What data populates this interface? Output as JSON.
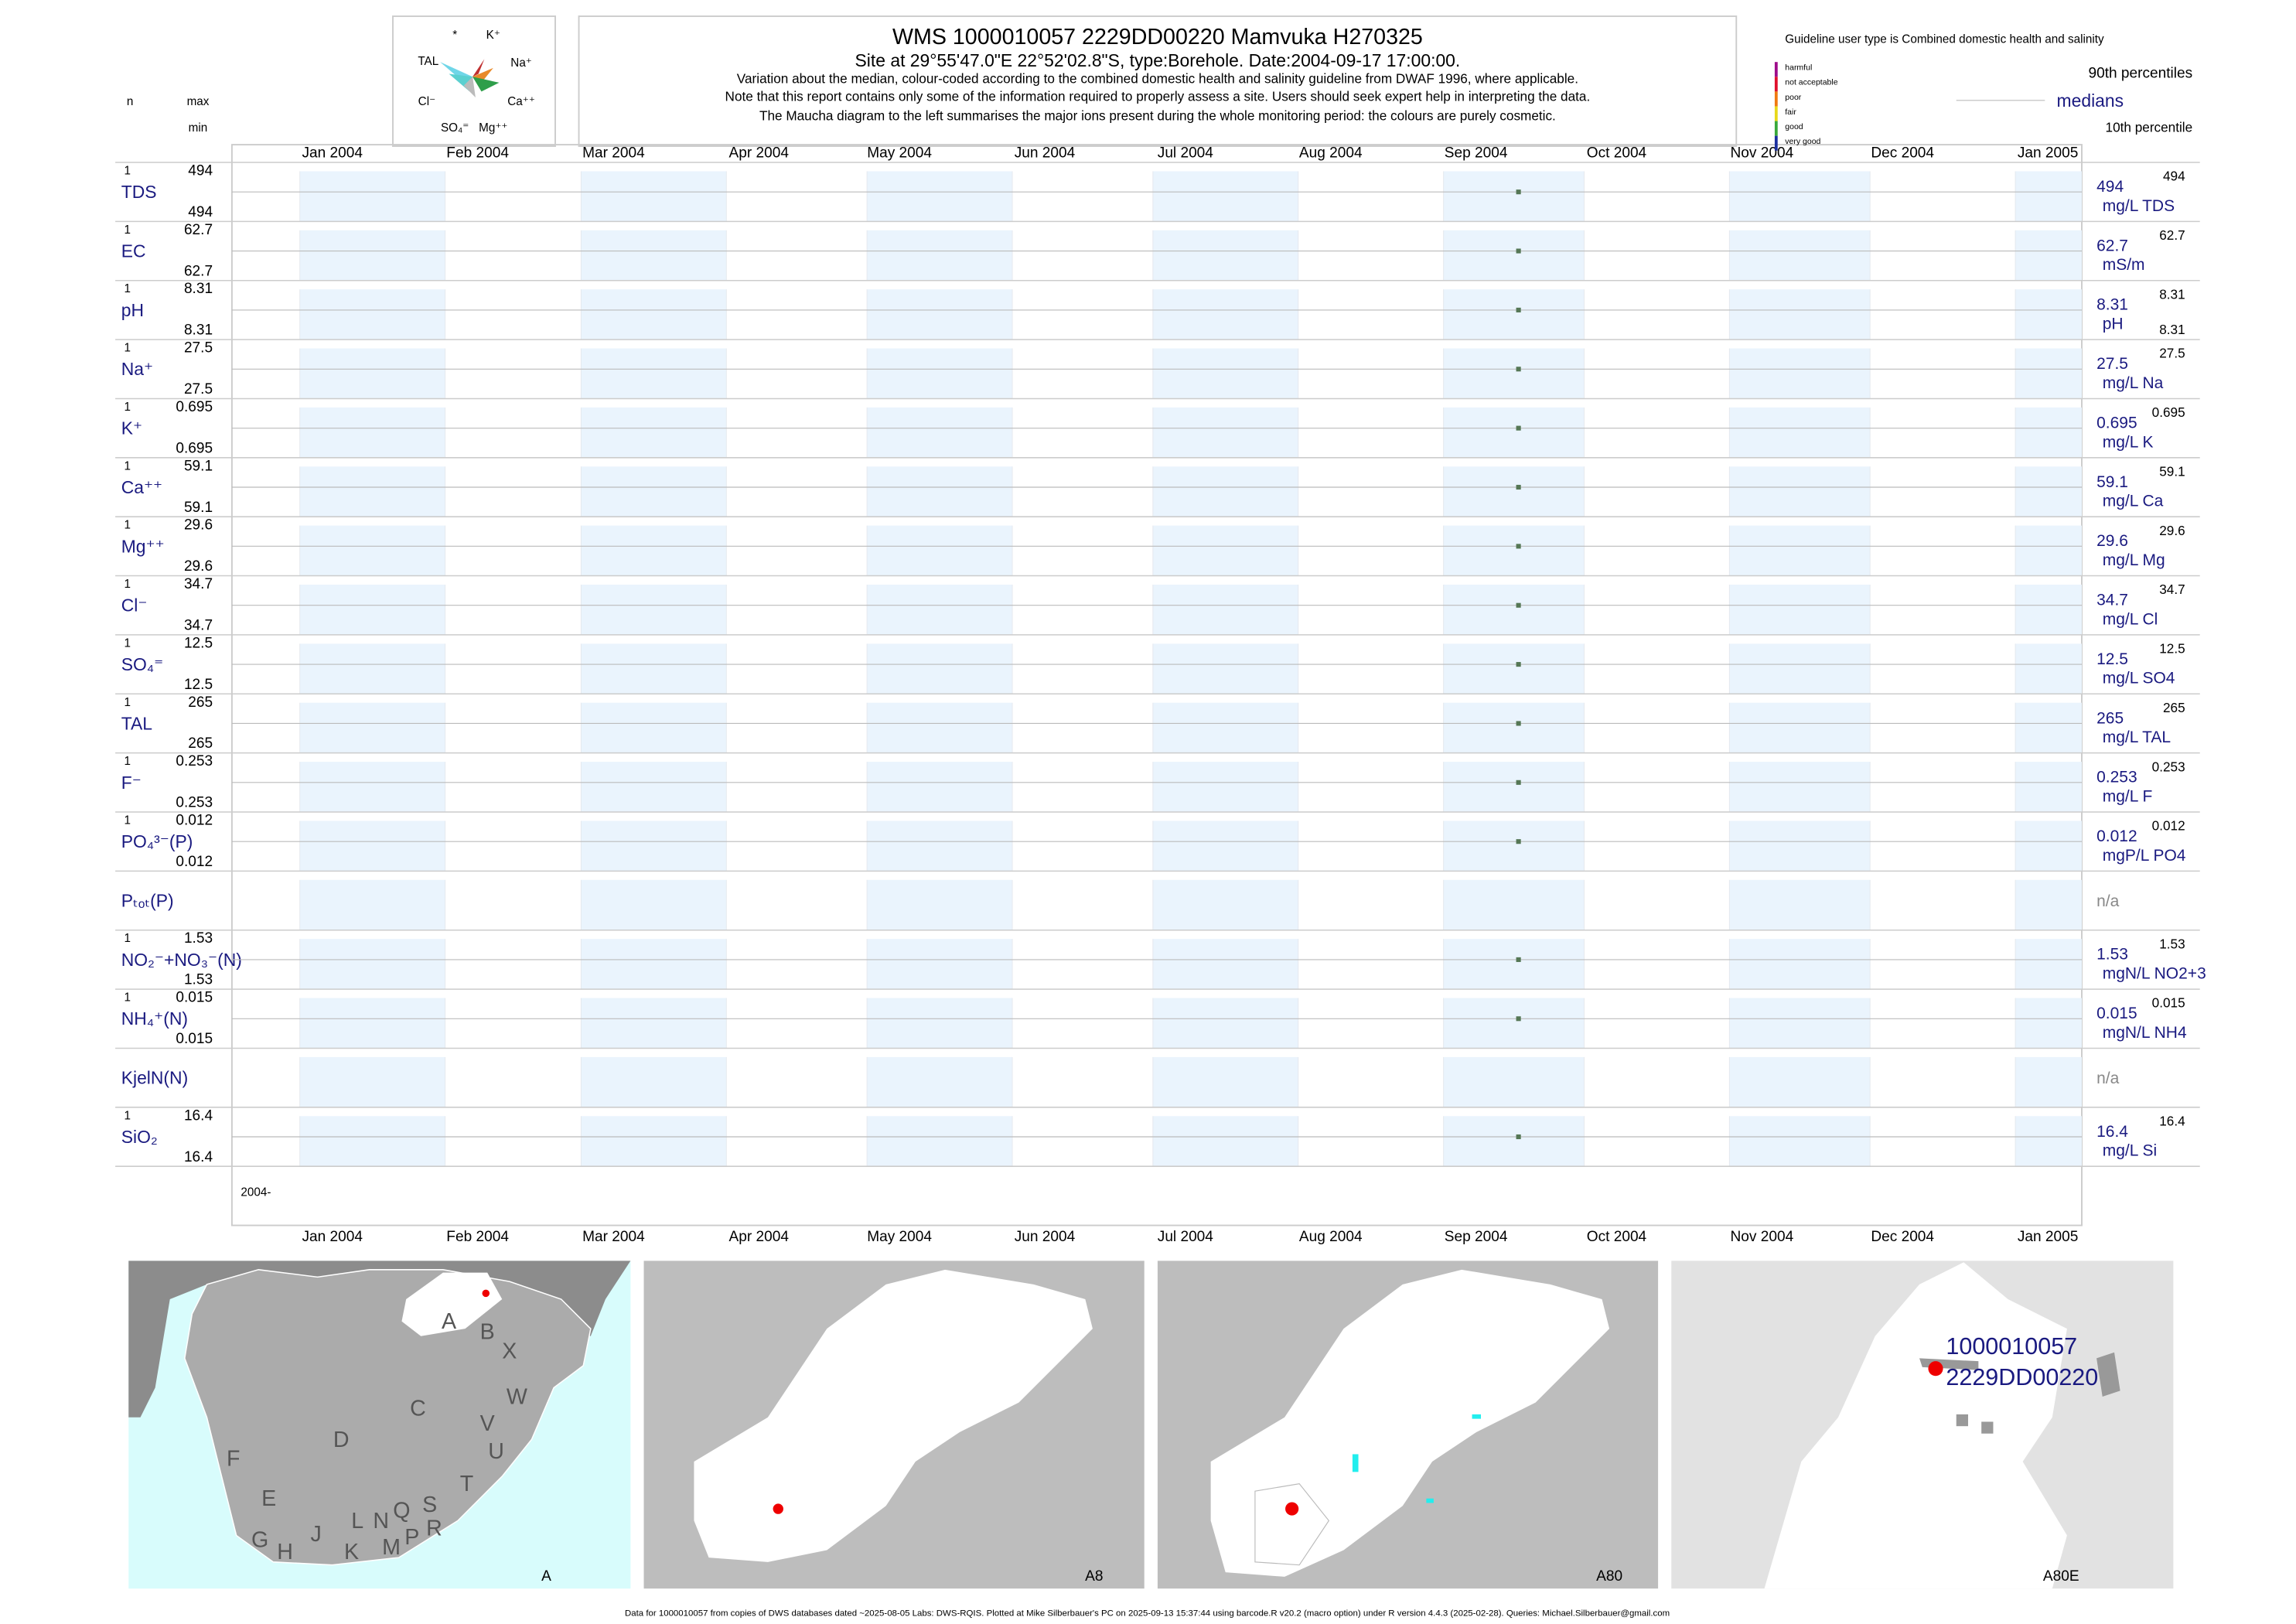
{
  "header": {
    "title": "WMS 1000010057 2229DD00220 Mamvuka H270325",
    "subtitle": "Site at 29°55'47.0\"E 22°52'02.8\"S, type:Borehole. Date:2004-09-17 17:00:00.",
    "notes": [
      "Variation about the median,  colour-coded according to the combined domestic health and salinity guideline from DWAF 1996, where applicable.",
      "Note that this report contains only some of the information required to properly assess a site. Users should seek expert help in interpreting the data.",
      "The Maucha diagram to the left summarises the major ions present during the whole monitoring period: the colours are purely cosmetic."
    ]
  },
  "column_heads": {
    "n": "n",
    "max": "max",
    "min": "min"
  },
  "maucha": {
    "labels": [
      "*",
      "K⁺",
      "TAL",
      "Na⁺",
      "Cl⁻",
      "Ca⁺⁺",
      "SO₄⁼",
      "Mg⁺⁺"
    ]
  },
  "legend": {
    "guideline": "Guideline user type is Combined domestic health and salinity",
    "classes": [
      {
        "name": "harmful",
        "color": "#9e0c8a"
      },
      {
        "name": "not acceptable",
        "color": "#e0102c"
      },
      {
        "name": "poor",
        "color": "#f07a10"
      },
      {
        "name": "fair",
        "color": "#e8d81a"
      },
      {
        "name": "good",
        "color": "#39a83a"
      },
      {
        "name": "very good",
        "color": "#1b2f9e"
      }
    ],
    "p90": "90th percentiles",
    "median": "medians",
    "p10": "10th percentile"
  },
  "plot": {
    "ticks": [
      {
        "value": "2004-01",
        "label": "Jan 2004"
      },
      {
        "value": "2004-02",
        "label": "Feb 2004"
      },
      {
        "value": "2004-03",
        "label": "Mar 2004"
      },
      {
        "value": "2004-04",
        "label": "Apr 2004"
      },
      {
        "value": "2004-05",
        "label": "May 2004"
      },
      {
        "value": "2004-06",
        "label": "Jun 2004"
      },
      {
        "value": "2004-07",
        "label": "Jul 2004"
      },
      {
        "value": "2004-08",
        "label": "Aug 2004"
      },
      {
        "value": "2004-09",
        "label": "Sep 2004"
      },
      {
        "value": "2004-10",
        "label": "Oct 2004"
      },
      {
        "value": "2004-11",
        "label": "Nov 2004"
      },
      {
        "value": "2004-12",
        "label": "Dec 2004"
      },
      {
        "value": "2005-01",
        "label": "Jan 2005"
      }
    ],
    "sample_date": "2004-09-17",
    "year_label": "2004-"
  },
  "rows": [
    {
      "label": "TDS",
      "n": 1,
      "max": 494,
      "min": 494,
      "median": 494,
      "p90": 494,
      "unit": "mg/L TDS"
    },
    {
      "label": "EC",
      "n": 1,
      "max": 62.7,
      "min": 62.7,
      "median": 62.7,
      "p90": 62.7,
      "unit": "mS/m"
    },
    {
      "label": "pH",
      "n": 1,
      "max": 8.31,
      "min": 8.31,
      "median": 8.31,
      "p90": 8.31,
      "p10": 8.31,
      "unit": "pH"
    },
    {
      "label": "Na⁺",
      "n": 1,
      "max": 27.5,
      "min": 27.5,
      "median": 27.5,
      "p90": 27.5,
      "unit": "mg/L Na"
    },
    {
      "label": "K⁺",
      "n": 1,
      "max": 0.695,
      "min": 0.695,
      "median": 0.695,
      "p90": 0.695,
      "unit": "mg/L K"
    },
    {
      "label": "Ca⁺⁺",
      "n": 1,
      "max": 59.1,
      "min": 59.1,
      "median": 59.1,
      "p90": 59.1,
      "unit": "mg/L Ca"
    },
    {
      "label": "Mg⁺⁺",
      "n": 1,
      "max": 29.6,
      "min": 29.6,
      "median": 29.6,
      "p90": 29.6,
      "unit": "mg/L Mg"
    },
    {
      "label": "Cl⁻",
      "n": 1,
      "max": 34.7,
      "min": 34.7,
      "median": 34.7,
      "p90": 34.7,
      "unit": "mg/L Cl"
    },
    {
      "label": "SO₄⁼",
      "n": 1,
      "max": 12.5,
      "min": 12.5,
      "median": 12.5,
      "p90": 12.5,
      "unit": "mg/L SO4"
    },
    {
      "label": "TAL",
      "n": 1,
      "max": 265,
      "min": 265,
      "median": 265,
      "p90": 265,
      "unit": "mg/L TAL"
    },
    {
      "label": "F⁻",
      "n": 1,
      "max": 0.253,
      "min": 0.253,
      "median": 0.253,
      "p90": 0.253,
      "unit": "mg/L F"
    },
    {
      "label": "PO₄³⁻(P)",
      "n": 1,
      "max": 0.012,
      "min": 0.012,
      "median": 0.012,
      "p90": 0.012,
      "unit": "mgP/L PO4"
    },
    {
      "label": "Pₜₒₜ(P)",
      "na": "n/a"
    },
    {
      "label": "NO₂⁻+NO₃⁻(N)",
      "n": 1,
      "max": 1.53,
      "min": 1.53,
      "median": 1.53,
      "p90": 1.53,
      "unit": "mgN/L NO2+3"
    },
    {
      "label": "NH₄⁺(N)",
      "n": 1,
      "max": 0.015,
      "min": 0.015,
      "median": 0.015,
      "p90": 0.015,
      "unit": "mgN/L NH4"
    },
    {
      "label": "KjelN(N)",
      "na": "n/a"
    },
    {
      "label": "SiO₂",
      "n": 1,
      "max": 16.4,
      "min": 16.4,
      "median": 16.4,
      "p90": 16.4,
      "unit": "mg/L Si"
    }
  ],
  "maps": [
    {
      "caption": "A",
      "regions": [
        "A",
        "B",
        "X",
        "C",
        "W",
        "V",
        "U",
        "D",
        "F",
        "T",
        "E",
        "S",
        "R",
        "Q",
        "N",
        "L",
        "P",
        "M",
        "K",
        "J",
        "H",
        "G"
      ]
    },
    {
      "caption": "A8"
    },
    {
      "caption": "A80"
    },
    {
      "caption": "A80E",
      "site": [
        "1000010057",
        "2229DD00220"
      ]
    }
  ],
  "footer": "Data for 1000010057 from copies of DWS databases dated ~2025-08-05 Labs: DWS-RQIS. Plotted at Mike Silberbauer's PC on 2025-09-13 15:37:44 using barcode.R v20.2 (macro option) under R version 4.4.3 (2025-02-28). Queries: Michael.Silberbauer@gmail.com"
}
